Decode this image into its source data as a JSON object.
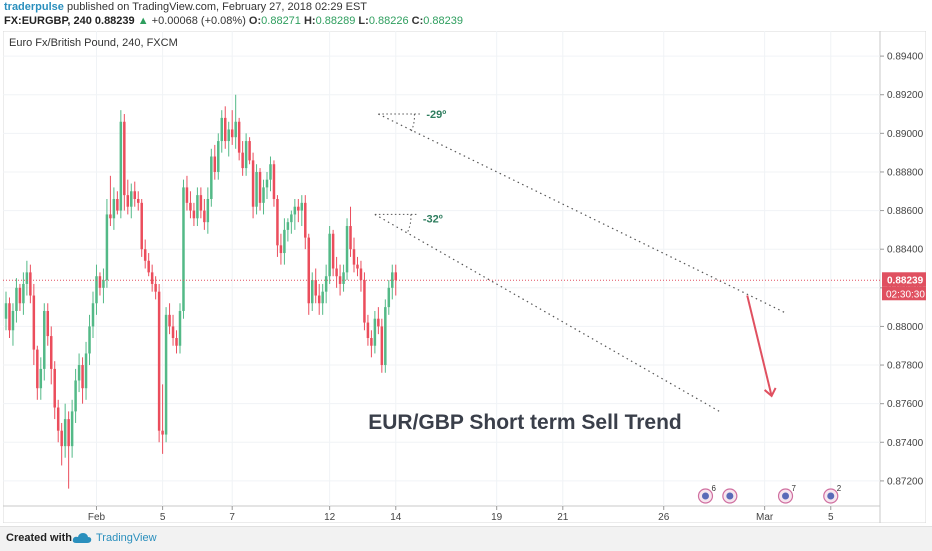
{
  "header": {
    "author": "traderpulse",
    "published": "published on TradingView.com, February 27, 2018 02:29 EST",
    "symbol": "FX:EURGBP, 240",
    "last": "0.88239",
    "change_arrow": "▲",
    "change": "+0.00068 (+0.08%)",
    "open_label": "O:",
    "open": "0.88271",
    "high_label": "H:",
    "high": "0.88289",
    "low_label": "L:",
    "low": "0.88226",
    "close_label": "C:",
    "close": "0.88239"
  },
  "chart_data": {
    "type": "candlestick",
    "title": "Euro Fx/British Pound, 240, FXCM",
    "annotation": "EUR/GBP Short term Sell Trend",
    "angle_labels": [
      "-29º",
      "-32º"
    ],
    "y_ticks": [
      "0.89400",
      "0.89200",
      "0.89000",
      "0.88800",
      "0.88600",
      "0.88400",
      "0.88200",
      "0.88000",
      "0.87800",
      "0.87600",
      "0.87400",
      "0.87200"
    ],
    "y_range": [
      0.8707,
      0.8953
    ],
    "x_ticks": [
      {
        "label": "Feb",
        "bar": 26
      },
      {
        "label": "5",
        "bar": 45
      },
      {
        "label": "7",
        "bar": 65
      },
      {
        "label": "12",
        "bar": 93
      },
      {
        "label": "14",
        "bar": 112
      },
      {
        "label": "19",
        "bar": 141
      },
      {
        "label": "21",
        "bar": 160
      },
      {
        "label": "26",
        "bar": 189
      },
      {
        "label": "Mar",
        "bar": 218
      },
      {
        "label": "5",
        "bar": 237
      }
    ],
    "last_price": "0.88239",
    "last_price_value": 0.88239,
    "countdown": "02:30:30",
    "price_line_color": "#e05060",
    "up_color": "#53b987",
    "down_color": "#eb4d5c",
    "event_badges": [
      "6",
      "7",
      "2"
    ],
    "channel_upper": [
      {
        "bar": 107,
        "price": 0.891
      },
      {
        "bar": 224,
        "price": 0.8807
      }
    ],
    "channel_lower": [
      {
        "bar": 106,
        "price": 0.8858
      },
      {
        "bar": 205,
        "price": 0.8756
      }
    ],
    "candles": [
      [
        0.8804,
        0.8818,
        0.8798,
        0.8812
      ],
      [
        0.8812,
        0.8815,
        0.8794,
        0.8798
      ],
      [
        0.8798,
        0.8812,
        0.879,
        0.8808
      ],
      [
        0.8808,
        0.8825,
        0.8802,
        0.882
      ],
      [
        0.882,
        0.8822,
        0.8808,
        0.8812
      ],
      [
        0.8812,
        0.8828,
        0.8806,
        0.8822
      ],
      [
        0.8822,
        0.8834,
        0.8816,
        0.8828
      ],
      [
        0.8828,
        0.8832,
        0.8812,
        0.8816
      ],
      [
        0.8816,
        0.8822,
        0.878,
        0.8788
      ],
      [
        0.8788,
        0.879,
        0.8762,
        0.8768
      ],
      [
        0.8768,
        0.8784,
        0.8762,
        0.8778
      ],
      [
        0.8778,
        0.8812,
        0.8772,
        0.8808
      ],
      [
        0.8808,
        0.8812,
        0.879,
        0.8795
      ],
      [
        0.8795,
        0.88,
        0.877,
        0.8778
      ],
      [
        0.8778,
        0.8782,
        0.8752,
        0.8758
      ],
      [
        0.8758,
        0.8762,
        0.874,
        0.8746
      ],
      [
        0.8746,
        0.875,
        0.8728,
        0.8738
      ],
      [
        0.8738,
        0.876,
        0.8732,
        0.8752
      ],
      [
        0.8752,
        0.8756,
        0.8716,
        0.8738
      ],
      [
        0.8738,
        0.8762,
        0.8732,
        0.8756
      ],
      [
        0.8756,
        0.8778,
        0.875,
        0.8772
      ],
      [
        0.8772,
        0.8786,
        0.8766,
        0.878
      ],
      [
        0.878,
        0.8784,
        0.876,
        0.8768
      ],
      [
        0.8768,
        0.8792,
        0.8762,
        0.8786
      ],
      [
        0.8786,
        0.8806,
        0.878,
        0.88
      ],
      [
        0.88,
        0.8818,
        0.8794,
        0.8812
      ],
      [
        0.8812,
        0.8832,
        0.8806,
        0.8826
      ],
      [
        0.8826,
        0.8828,
        0.8816,
        0.882
      ],
      [
        0.882,
        0.883,
        0.8812,
        0.8824
      ],
      [
        0.8824,
        0.8866,
        0.882,
        0.8858
      ],
      [
        0.8858,
        0.8878,
        0.8852,
        0.8856
      ],
      [
        0.8856,
        0.8872,
        0.885,
        0.8866
      ],
      [
        0.8866,
        0.887,
        0.8858,
        0.886
      ],
      [
        0.886,
        0.8912,
        0.8856,
        0.8906
      ],
      [
        0.8906,
        0.891,
        0.886,
        0.8868
      ],
      [
        0.8868,
        0.8876,
        0.8858,
        0.8862
      ],
      [
        0.8862,
        0.8874,
        0.8856,
        0.887
      ],
      [
        0.887,
        0.8875,
        0.8862,
        0.8866
      ],
      [
        0.8866,
        0.887,
        0.886,
        0.8864
      ],
      [
        0.8864,
        0.8866,
        0.8836,
        0.884
      ],
      [
        0.884,
        0.8845,
        0.883,
        0.8834
      ],
      [
        0.8834,
        0.8838,
        0.8826,
        0.8828
      ],
      [
        0.8828,
        0.8832,
        0.8818,
        0.8822
      ],
      [
        0.8822,
        0.8826,
        0.8814,
        0.8818
      ],
      [
        0.8818,
        0.8822,
        0.874,
        0.8746
      ],
      [
        0.8746,
        0.877,
        0.8734,
        0.8744
      ],
      [
        0.8744,
        0.881,
        0.874,
        0.8806
      ],
      [
        0.8806,
        0.8812,
        0.8796,
        0.88
      ],
      [
        0.88,
        0.8806,
        0.879,
        0.8794
      ],
      [
        0.8794,
        0.8798,
        0.8786,
        0.879
      ],
      [
        0.879,
        0.8812,
        0.8786,
        0.8808
      ],
      [
        0.8808,
        0.8876,
        0.8804,
        0.8872
      ],
      [
        0.8872,
        0.8878,
        0.886,
        0.8864
      ],
      [
        0.8864,
        0.887,
        0.8856,
        0.886
      ],
      [
        0.886,
        0.8864,
        0.8852,
        0.8856
      ],
      [
        0.8856,
        0.8872,
        0.8852,
        0.8868
      ],
      [
        0.8868,
        0.8872,
        0.8856,
        0.886
      ],
      [
        0.886,
        0.8866,
        0.885,
        0.8854
      ],
      [
        0.8854,
        0.8872,
        0.8848,
        0.8866
      ],
      [
        0.8866,
        0.8892,
        0.8862,
        0.8888
      ],
      [
        0.8888,
        0.8894,
        0.8876,
        0.888
      ],
      [
        0.888,
        0.89,
        0.8876,
        0.8896
      ],
      [
        0.8896,
        0.8912,
        0.889,
        0.8908
      ],
      [
        0.8908,
        0.8914,
        0.8892,
        0.8896
      ],
      [
        0.8896,
        0.8906,
        0.8888,
        0.8902
      ],
      [
        0.8902,
        0.8912,
        0.8894,
        0.8898
      ],
      [
        0.8898,
        0.892,
        0.8892,
        0.8906
      ],
      [
        0.8906,
        0.8908,
        0.8886,
        0.889
      ],
      [
        0.889,
        0.8896,
        0.8878,
        0.8882
      ],
      [
        0.8882,
        0.89,
        0.8878,
        0.8896
      ],
      [
        0.8896,
        0.8898,
        0.8884,
        0.8886
      ],
      [
        0.8886,
        0.889,
        0.8856,
        0.8862
      ],
      [
        0.8862,
        0.8884,
        0.8858,
        0.888
      ],
      [
        0.888,
        0.8882,
        0.886,
        0.8864
      ],
      [
        0.8864,
        0.8876,
        0.8858,
        0.8872
      ],
      [
        0.8872,
        0.888,
        0.8866,
        0.8876
      ],
      [
        0.8876,
        0.8888,
        0.887,
        0.8884
      ],
      [
        0.8884,
        0.8886,
        0.8862,
        0.8866
      ],
      [
        0.8866,
        0.8868,
        0.8836,
        0.8842
      ],
      [
        0.8842,
        0.8848,
        0.8832,
        0.8838
      ],
      [
        0.8838,
        0.8856,
        0.8832,
        0.885
      ],
      [
        0.885,
        0.8856,
        0.8844,
        0.8854
      ],
      [
        0.8854,
        0.886,
        0.8848,
        0.8858
      ],
      [
        0.8858,
        0.8866,
        0.885,
        0.8862
      ],
      [
        0.8862,
        0.8866,
        0.8854,
        0.886
      ],
      [
        0.886,
        0.8868,
        0.8852,
        0.8864
      ],
      [
        0.8864,
        0.8868,
        0.884,
        0.8846
      ],
      [
        0.8846,
        0.8848,
        0.8806,
        0.8812
      ],
      [
        0.8812,
        0.8828,
        0.8808,
        0.8824
      ],
      [
        0.8824,
        0.883,
        0.8812,
        0.8816
      ],
      [
        0.8816,
        0.8822,
        0.8806,
        0.8812
      ],
      [
        0.8812,
        0.8822,
        0.8806,
        0.8818
      ],
      [
        0.8818,
        0.8832,
        0.8812,
        0.8826
      ],
      [
        0.8826,
        0.8852,
        0.8822,
        0.8848
      ],
      [
        0.8848,
        0.885,
        0.8826,
        0.883
      ],
      [
        0.883,
        0.8836,
        0.882,
        0.8826
      ],
      [
        0.8826,
        0.8832,
        0.8816,
        0.8822
      ],
      [
        0.8822,
        0.8832,
        0.8818,
        0.8828
      ],
      [
        0.8828,
        0.8856,
        0.8824,
        0.8852
      ],
      [
        0.8852,
        0.8862,
        0.8836,
        0.884
      ],
      [
        0.884,
        0.8846,
        0.8828,
        0.8832
      ],
      [
        0.8832,
        0.8836,
        0.8826,
        0.883
      ],
      [
        0.883,
        0.8834,
        0.8818,
        0.8824
      ],
      [
        0.8824,
        0.8828,
        0.8798,
        0.8802
      ],
      [
        0.8802,
        0.8806,
        0.879,
        0.8794
      ],
      [
        0.8794,
        0.8798,
        0.8784,
        0.879
      ],
      [
        0.879,
        0.8808,
        0.8786,
        0.8804
      ],
      [
        0.8804,
        0.881,
        0.8796,
        0.88
      ],
      [
        0.88,
        0.8804,
        0.8776,
        0.878
      ],
      [
        0.878,
        0.8814,
        0.8776,
        0.881
      ],
      [
        0.881,
        0.8824,
        0.8806,
        0.882
      ],
      [
        0.882,
        0.8832,
        0.8814,
        0.8828
      ],
      [
        0.8828,
        0.8832,
        0.8816,
        0.8824
      ]
    ]
  },
  "footer": {
    "created_with": "Created with",
    "brand": "TradingView"
  }
}
